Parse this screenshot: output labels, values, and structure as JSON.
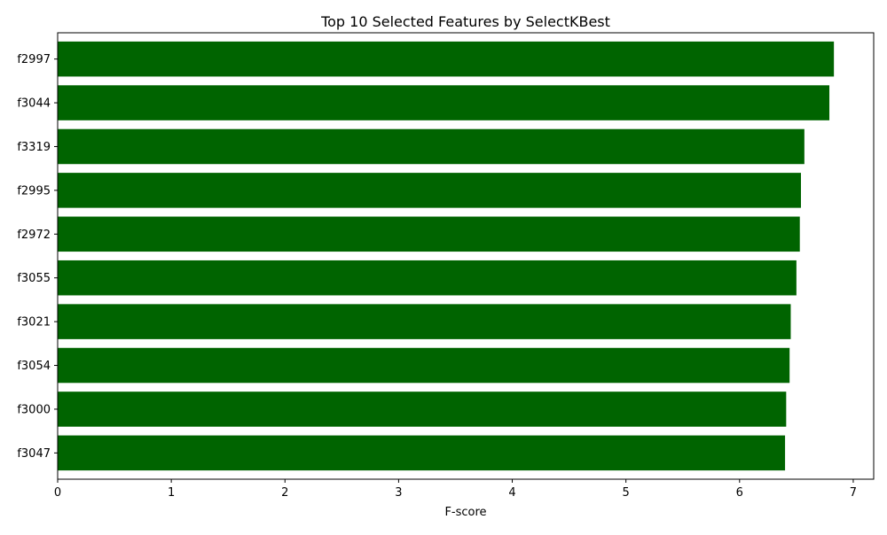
{
  "chart_data": {
    "type": "bar",
    "orientation": "horizontal",
    "title": "Top 10 Selected Features by SelectKBest",
    "xlabel": "F-score",
    "ylabel": "",
    "xlim": [
      0,
      7.18
    ],
    "xticks": [
      0,
      1,
      2,
      3,
      4,
      5,
      6,
      7
    ],
    "grid": false,
    "bar_color": "#006400",
    "categories": [
      "f2997",
      "f3044",
      "f3319",
      "f2995",
      "f2972",
      "f3055",
      "f3021",
      "f3054",
      "f3000",
      "f3047"
    ],
    "values": [
      6.83,
      6.79,
      6.57,
      6.54,
      6.53,
      6.5,
      6.45,
      6.44,
      6.41,
      6.4
    ]
  }
}
